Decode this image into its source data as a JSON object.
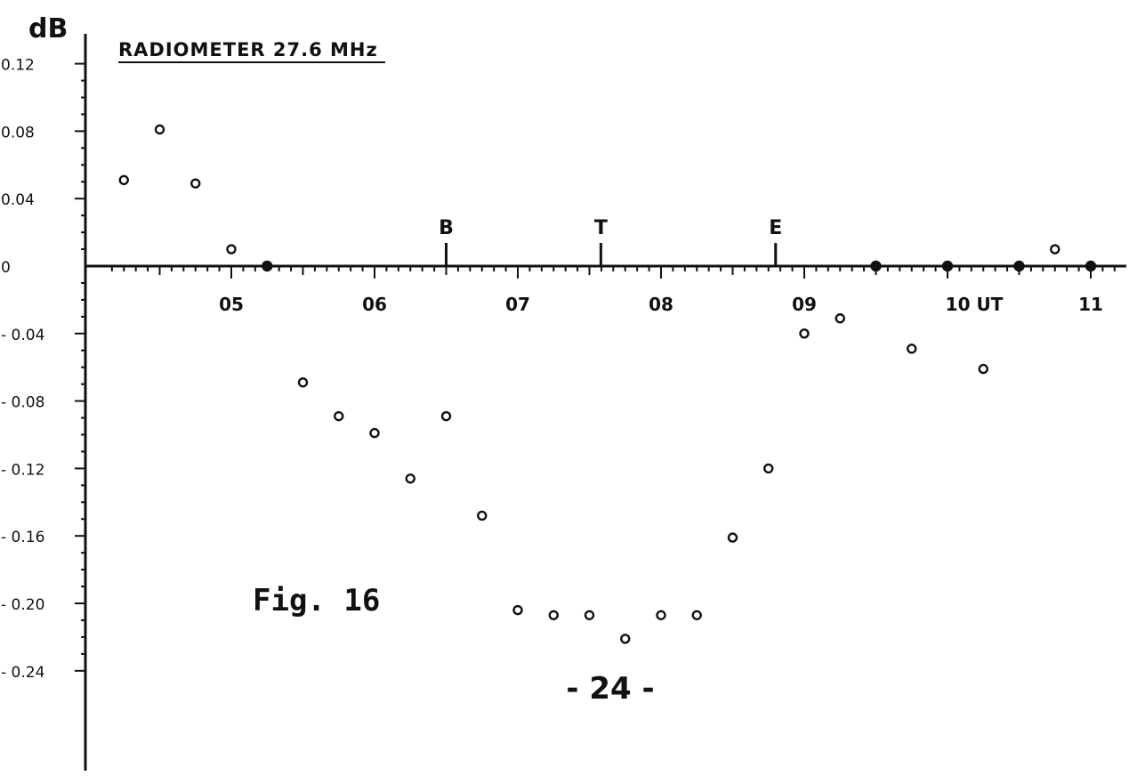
{
  "chart_data": {
    "type": "scatter",
    "title": "RADIOMETER  27.6 MHz",
    "ylabel": "dB",
    "xlabel": "UT",
    "figure_caption": "Fig. 16",
    "page_number": "- 24 -",
    "xlim": [
      4.15,
      11.25
    ],
    "ylim": [
      -0.24,
      0.12
    ],
    "x_tick_labels": [
      {
        "x": 5,
        "label": "05"
      },
      {
        "x": 6,
        "label": "06"
      },
      {
        "x": 7,
        "label": "07"
      },
      {
        "x": 8,
        "label": "08"
      },
      {
        "x": 9,
        "label": "09"
      },
      {
        "x": 10,
        "label": "10 UT"
      },
      {
        "x": 11,
        "label": "11"
      }
    ],
    "y_tick_labels": [
      {
        "y": 0.12,
        "label": "0.12"
      },
      {
        "y": 0.08,
        "label": "0.08"
      },
      {
        "y": 0.04,
        "label": "0.04"
      },
      {
        "y": 0,
        "label": "0"
      },
      {
        "y": -0.04,
        "label": "- 0.04"
      },
      {
        "y": -0.08,
        "label": "- 0.08"
      },
      {
        "y": -0.12,
        "label": "- 0.12"
      },
      {
        "y": -0.16,
        "label": "- 0.16"
      },
      {
        "y": -0.2,
        "label": "- 0.20"
      },
      {
        "y": -0.24,
        "label": "- 0.24"
      }
    ],
    "markers": [
      {
        "label": "B",
        "x": 6.5
      },
      {
        "label": "T",
        "x": 7.58
      },
      {
        "label": "E",
        "x": 8.8
      }
    ],
    "series": [
      {
        "points": [
          {
            "x": 4.25,
            "y": 0.051
          },
          {
            "x": 4.5,
            "y": 0.081
          },
          {
            "x": 4.75,
            "y": 0.049
          },
          {
            "x": 5.0,
            "y": 0.01
          },
          {
            "x": 5.25,
            "y": 0.0
          },
          {
            "x": 5.5,
            "y": -0.069
          },
          {
            "x": 5.75,
            "y": -0.089
          },
          {
            "x": 6.0,
            "y": -0.099
          },
          {
            "x": 6.25,
            "y": -0.126
          },
          {
            "x": 6.5,
            "y": -0.089
          },
          {
            "x": 6.75,
            "y": -0.148
          },
          {
            "x": 7.0,
            "y": -0.204
          },
          {
            "x": 7.25,
            "y": -0.207
          },
          {
            "x": 7.5,
            "y": -0.207
          },
          {
            "x": 7.75,
            "y": -0.221
          },
          {
            "x": 8.0,
            "y": -0.207
          },
          {
            "x": 8.25,
            "y": -0.207
          },
          {
            "x": 8.75,
            "y": -0.12
          },
          {
            "x": 8.5,
            "y": -0.161
          },
          {
            "x": 9.0,
            "y": -0.04
          },
          {
            "x": 9.25,
            "y": -0.031
          },
          {
            "x": 9.5,
            "y": 0.0
          },
          {
            "x": 9.75,
            "y": -0.049
          },
          {
            "x": 10.0,
            "y": 0.0
          },
          {
            "x": 10.25,
            "y": -0.061
          },
          {
            "x": 10.5,
            "y": 0.0
          },
          {
            "x": 10.75,
            "y": 0.01
          },
          {
            "x": 11.0,
            "y": 0.0
          }
        ]
      }
    ]
  }
}
